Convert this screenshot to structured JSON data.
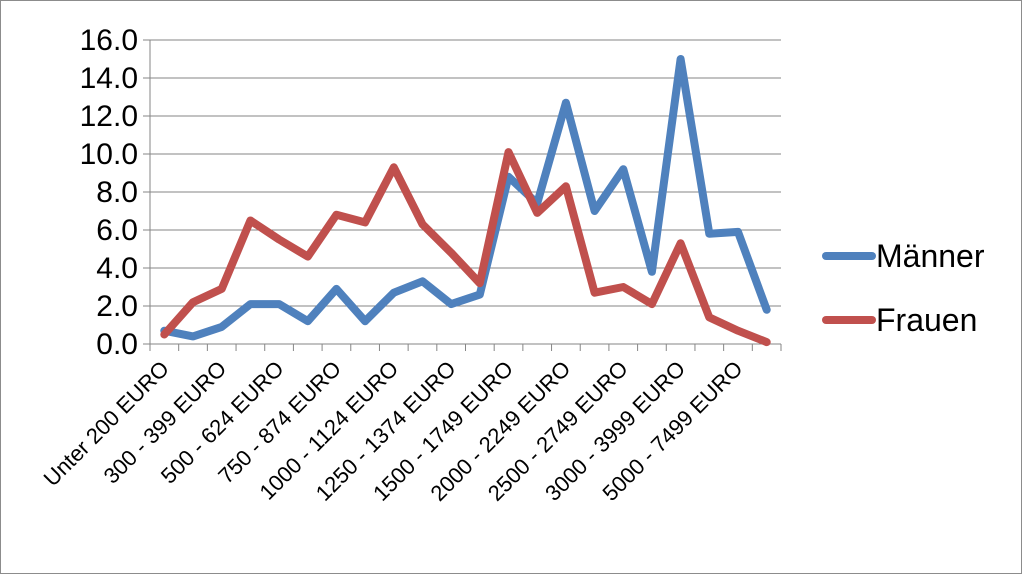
{
  "chart_data": {
    "type": "line",
    "title": "",
    "xlabel": "",
    "ylabel": "",
    "ylim": [
      0,
      16
    ],
    "yticks": [
      "0.0",
      "2.0",
      "4.0",
      "6.0",
      "8.0",
      "10.0",
      "12.0",
      "14.0",
      "16.0"
    ],
    "grid": "horizontal",
    "legend_position": "right",
    "categories": [
      "Unter 200 EURO",
      "",
      "300 - 399 EURO",
      "",
      "500 - 624 EURO",
      "",
      "750 - 874 EURO",
      "",
      "1000 - 1124 EURO",
      "",
      "1250 - 1374 EURO",
      "",
      "1500 - 1749 EURO",
      "",
      "2000 - 2249 EURO",
      "",
      "2500 - 2749 EURO",
      "",
      "3000 - 3999 EURO",
      "",
      "5000 - 7499 EURO",
      ""
    ],
    "series": [
      {
        "name": "Männer",
        "color": "#4f81bd",
        "values": [
          0.7,
          0.4,
          0.9,
          2.1,
          2.1,
          1.2,
          2.9,
          1.2,
          2.7,
          3.3,
          2.1,
          2.6,
          8.8,
          7.4,
          12.7,
          7.0,
          9.2,
          3.8,
          15.0,
          5.8,
          5.9,
          1.8
        ]
      },
      {
        "name": "Frauen",
        "color": "#c0504d",
        "values": [
          0.5,
          2.2,
          2.9,
          6.5,
          5.5,
          4.6,
          6.8,
          6.4,
          9.3,
          6.3,
          4.8,
          3.2,
          10.1,
          6.9,
          8.3,
          2.7,
          3.0,
          2.1,
          5.3,
          1.4,
          0.7,
          0.1
        ]
      }
    ]
  }
}
